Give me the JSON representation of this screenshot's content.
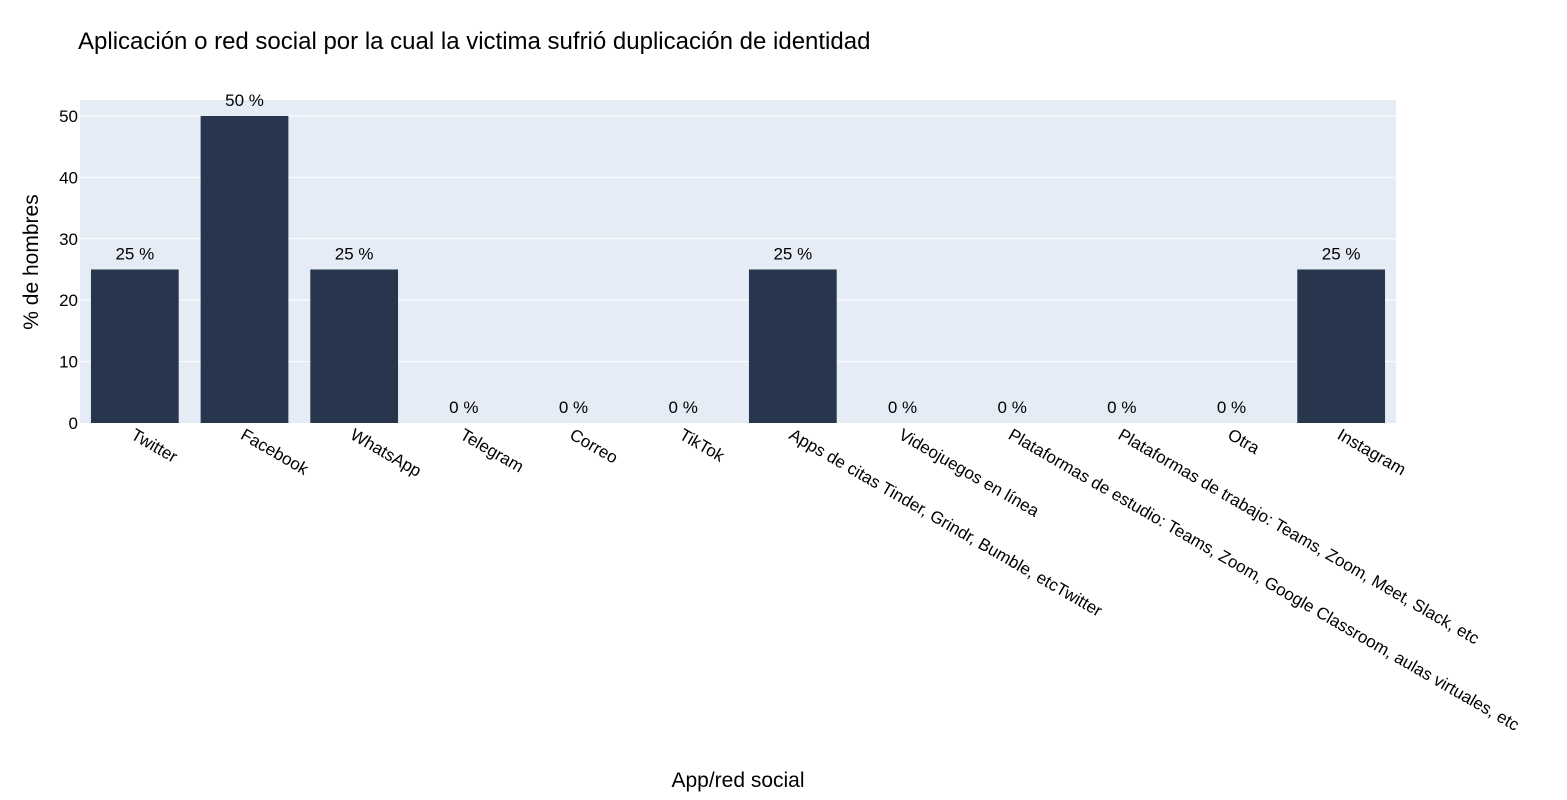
{
  "chart_data": {
    "type": "bar",
    "title": "Aplicación o red social por la cual la victima sufrió duplicación de identidad",
    "xlabel": "App/red social",
    "ylabel": "% de hombres",
    "categories": [
      "Twitter",
      "Facebook",
      "WhatsApp",
      "Telegram",
      "Correo",
      "TikTok",
      "Apps de citas Tinder, Grindr, Bumble, etcTwitter",
      "Videojuegos en línea",
      "Plataformas de estudio: Teams, Zoom, Google Classroom, aulas virtuales, etc",
      "Plataformas de trabajo: Teams, Zoom, Meet, Slack, etc",
      "Otra",
      "Instagram"
    ],
    "values": [
      25,
      50,
      25,
      0,
      0,
      0,
      25,
      0,
      0,
      0,
      0,
      25
    ],
    "data_labels": [
      "25 %",
      "50 %",
      "25 %",
      "0 %",
      "0 %",
      "0 %",
      "25 %",
      "0 %",
      "0 %",
      "0 %",
      "0 %",
      "25 %"
    ],
    "yticks": [
      0,
      10,
      20,
      30,
      40,
      50
    ],
    "ylim": [
      0,
      52.6
    ],
    "grid": true,
    "colors": {
      "bar": "#27364c",
      "plot_bg": "#e5ecf6",
      "grid": "#ffffff",
      "text": "#000000"
    }
  }
}
